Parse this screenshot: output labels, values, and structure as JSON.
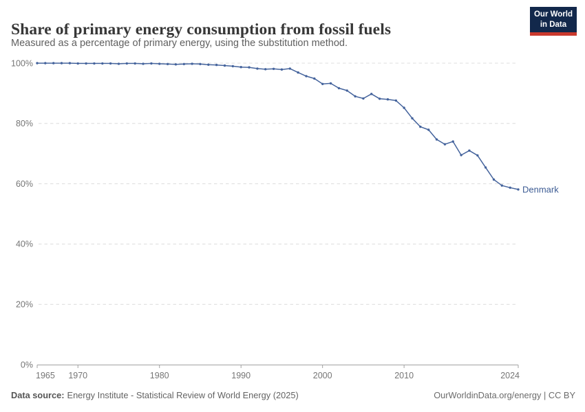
{
  "header": {
    "title": "Share of primary energy consumption from fossil fuels",
    "subtitle": "Measured as a percentage of primary energy, using the substitution method.",
    "logo": {
      "line1": "Our World",
      "line2": "in Data",
      "bg": "#12284b",
      "accent": "#c9392d"
    }
  },
  "chart_data": {
    "type": "line",
    "title": "Share of primary energy consumption from fossil fuels",
    "xlabel": "",
    "ylabel": "",
    "xlim": [
      1965,
      2024
    ],
    "ylim": [
      0,
      100
    ],
    "x_ticks": [
      1965,
      1970,
      1980,
      1990,
      2000,
      2010,
      2024
    ],
    "y_ticks": [
      0,
      20,
      40,
      60,
      80,
      100
    ],
    "y_tick_suffix": "%",
    "grid": "horizontal-dashed",
    "legend_position": "end-of-line-label",
    "series": [
      {
        "name": "Denmark",
        "color": "#44639c",
        "x": [
          1965,
          1966,
          1967,
          1968,
          1969,
          1970,
          1971,
          1972,
          1973,
          1974,
          1975,
          1976,
          1977,
          1978,
          1979,
          1980,
          1981,
          1982,
          1983,
          1984,
          1985,
          1986,
          1987,
          1988,
          1989,
          1990,
          1991,
          1992,
          1993,
          1994,
          1995,
          1996,
          1997,
          1998,
          1999,
          2000,
          2001,
          2002,
          2003,
          2004,
          2005,
          2006,
          2007,
          2008,
          2009,
          2010,
          2011,
          2012,
          2013,
          2014,
          2015,
          2016,
          2017,
          2018,
          2019,
          2020,
          2021,
          2022,
          2023,
          2024
        ],
        "values": [
          100,
          100,
          100,
          100,
          100,
          99.9,
          99.9,
          99.9,
          99.9,
          99.9,
          99.8,
          99.9,
          99.9,
          99.8,
          99.9,
          99.8,
          99.7,
          99.6,
          99.7,
          99.8,
          99.7,
          99.5,
          99.4,
          99.2,
          99.0,
          98.7,
          98.6,
          98.2,
          98.0,
          98.1,
          97.9,
          98.2,
          96.9,
          95.7,
          94.9,
          93.1,
          93.3,
          91.7,
          90.9,
          89.0,
          88.3,
          89.8,
          88.2,
          88.0,
          87.6,
          85.2,
          81.7,
          78.9,
          77.9,
          74.7,
          73.1,
          74.0,
          69.5,
          71.0,
          69.4,
          65.4,
          61.4,
          59.4,
          58.7,
          58.1
        ]
      }
    ]
  },
  "colors": {
    "line": "#44639c",
    "entity_label": "#3d5c94",
    "gridline": "#dcdcdc",
    "axis": "#a1a1a1",
    "tick_label": "#757575"
  },
  "footer": {
    "source_label": "Data source:",
    "source_text": "Energy Institute - Statistical Review of World Energy (2025)",
    "rights": "OurWorldinData.org/energy | CC BY"
  }
}
